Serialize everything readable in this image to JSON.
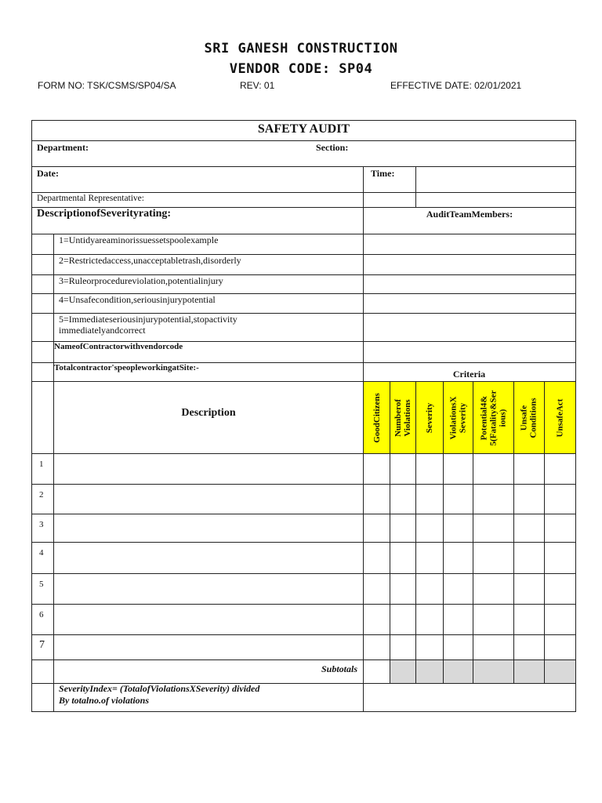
{
  "header": {
    "company": "SRI GANESH CONSTRUCTION",
    "vendor_code": "VENDOR CODE: SP04",
    "form_no": "FORM NO: TSK/CSMS/SP04/SA",
    "rev": "REV: 01",
    "effective_date": "EFFECTIVE DATE: 02/01/2021"
  },
  "form": {
    "title": "SAFETY AUDIT",
    "department_label": "Department:",
    "section_label": "Section:",
    "date_label": "Date:",
    "time_label": "Time:",
    "rep_label": "Departmental Representative:",
    "severity_heading": "DescriptionofSeverityrating:",
    "audit_team_label": "AuditTeamMembers:",
    "severity_ratings": [
      "1=Untidyareaminorissuessetspoolexample",
      "2=Restrictedaccess,unacceptabletrash,disorderly",
      "3=Ruleorprocedureviolation,potentialinjury",
      "4=Unsafecondition,seriousinjurypotential",
      "5=Immediateseriousinjurypotential,stopactivity immediatelyandcorrect"
    ],
    "contractor_label": "NameofContractorwithvendorcode",
    "people_label": "Totalcontractor'speopleworkingatSite:-",
    "criteria_label": "Criteria",
    "description_label": "Description",
    "criteria_columns": [
      "GoodCitizens",
      "Numberof Violations",
      "Severity",
      "ViolationsX Severity",
      "Potential4& 5(Fatality&Ser ious)",
      "Unsafe Conditions",
      "UnsafeAct"
    ],
    "row_numbers": [
      "1",
      "2",
      "3",
      "4",
      "5",
      "6",
      "7"
    ],
    "subtotals_label": "Subtotals",
    "severity_index_line1": "SeverityIndex= (TotalofViolationsXSeverity) divided",
    "severity_index_line2": "By totalno.of violations"
  },
  "colors": {
    "criteria_header": "#ffff00",
    "subtotal_shade": "#d9d9d9"
  }
}
